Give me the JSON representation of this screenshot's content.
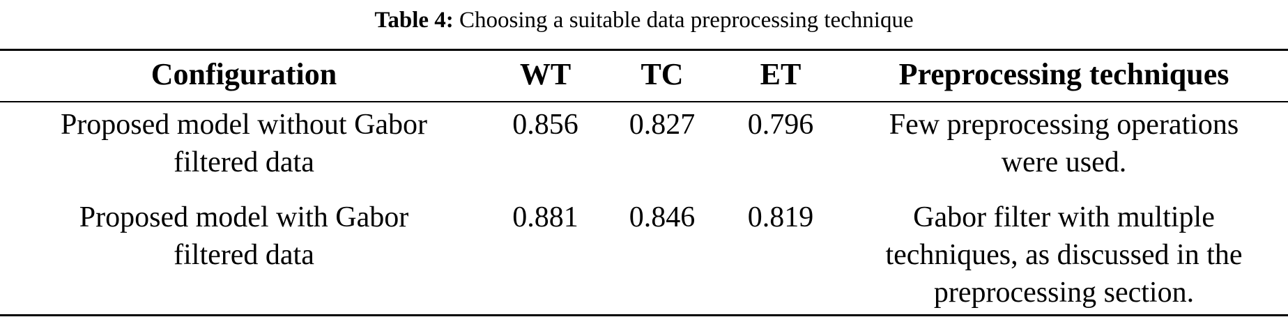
{
  "colors": {
    "background": "#ffffff",
    "text": "#000000",
    "rule": "#000000"
  },
  "caption": {
    "label": "Table 4:",
    "text": "Choosing a suitable data preprocessing technique"
  },
  "table": {
    "headers": {
      "configuration": "Configuration",
      "wt": "WT",
      "tc": "TC",
      "et": "ET",
      "preprocessing": "Preprocessing techniques"
    },
    "rows": [
      {
        "configuration": "Proposed model without Gabor\nfiltered data",
        "wt": "0.856",
        "tc": "0.827",
        "et": "0.796",
        "preprocessing": "Few preprocessing operations\nwere used."
      },
      {
        "configuration": "Proposed model with Gabor\nfiltered data",
        "wt": "0.881",
        "tc": "0.846",
        "et": "0.819",
        "preprocessing": "Gabor filter with multiple\ntechniques, as discussed in the\npreprocessing section."
      }
    ]
  }
}
